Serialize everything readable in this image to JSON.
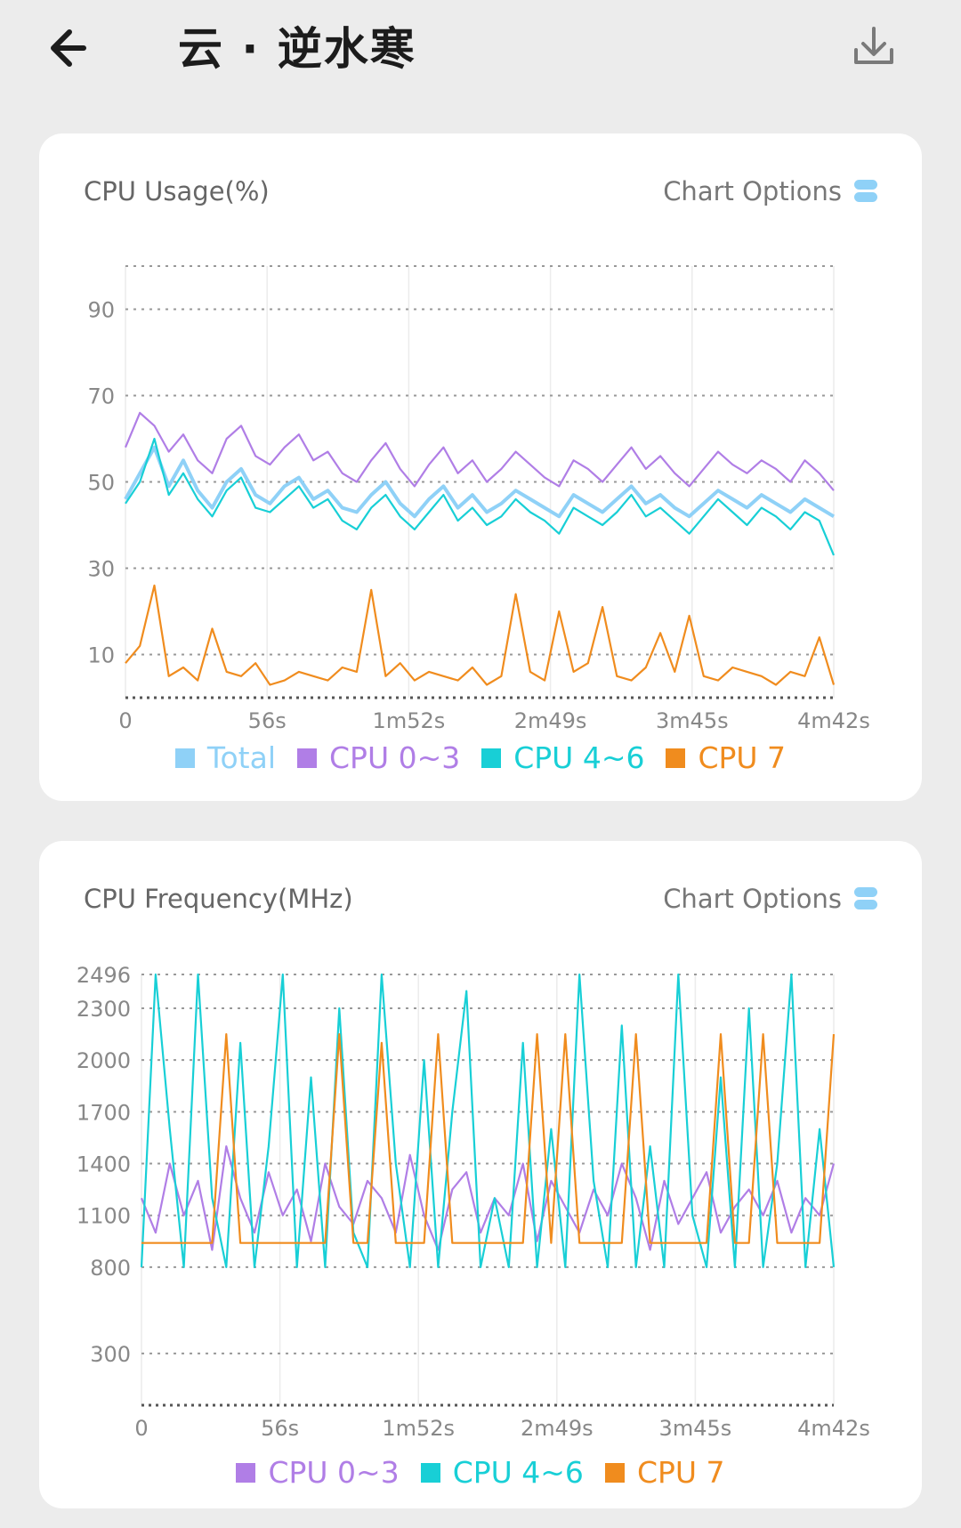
{
  "appbar": {
    "title": "云 · 逆水寒",
    "back_icon": "arrow-left-icon",
    "download_icon": "download-icon"
  },
  "usage_card": {
    "title": "CPU Usage(%)",
    "options_label": "Chart Options",
    "options_icon": "stacked-toggle-icon"
  },
  "frequency_card": {
    "title": "CPU Frequency(MHz)",
    "options_label": "Chart Options",
    "options_icon": "stacked-toggle-icon"
  },
  "colors": {
    "total": "#8fd1f7",
    "cpu03": "#b07ee6",
    "cpu46": "#18cfd6",
    "cpu7": "#f08c1e",
    "accent": "#8fd1f7"
  },
  "chart_data": [
    {
      "type": "line",
      "title": "CPU Usage(%)",
      "ylim": [
        0,
        100
      ],
      "yticks": [
        10,
        30,
        50,
        70,
        90
      ],
      "ytick_labels": [
        "10",
        "30",
        "50",
        "70",
        "90"
      ],
      "x_range_seconds": [
        0,
        282
      ],
      "xtick_labels": [
        "0",
        "56s",
        "1m52s",
        "2m49s",
        "3m45s",
        "4m42s"
      ],
      "legend_position": "bottom",
      "grid": true,
      "series": [
        {
          "name": "Total",
          "color": "#8fd1f7",
          "values": [
            46,
            52,
            58,
            49,
            55,
            48,
            44,
            50,
            53,
            47,
            45,
            49,
            51,
            46,
            48,
            44,
            43,
            47,
            50,
            45,
            42,
            46,
            49,
            44,
            47,
            43,
            45,
            48,
            46,
            44,
            42,
            47,
            45,
            43,
            46,
            49,
            45,
            47,
            44,
            42,
            45,
            48,
            46,
            44,
            47,
            45,
            43,
            46,
            44,
            42
          ]
        },
        {
          "name": "CPU 0~3",
          "color": "#b07ee6",
          "values": [
            58,
            66,
            63,
            57,
            61,
            55,
            52,
            60,
            63,
            56,
            54,
            58,
            61,
            55,
            57,
            52,
            50,
            55,
            59,
            53,
            49,
            54,
            58,
            52,
            55,
            50,
            53,
            57,
            54,
            51,
            49,
            55,
            53,
            50,
            54,
            58,
            53,
            56,
            52,
            49,
            53,
            57,
            54,
            52,
            55,
            53,
            50,
            55,
            52,
            48
          ]
        },
        {
          "name": "CPU 4~6",
          "color": "#18cfd6",
          "values": [
            45,
            50,
            60,
            47,
            52,
            46,
            42,
            48,
            51,
            44,
            43,
            46,
            49,
            44,
            46,
            41,
            39,
            44,
            47,
            42,
            39,
            43,
            47,
            41,
            44,
            40,
            42,
            46,
            43,
            41,
            38,
            44,
            42,
            40,
            43,
            47,
            42,
            44,
            41,
            38,
            42,
            46,
            43,
            40,
            44,
            42,
            39,
            43,
            41,
            33
          ]
        },
        {
          "name": "CPU 7",
          "color": "#f08c1e",
          "values": [
            8,
            12,
            26,
            5,
            7,
            4,
            16,
            6,
            5,
            8,
            3,
            4,
            6,
            5,
            4,
            7,
            6,
            25,
            5,
            8,
            4,
            6,
            5,
            4,
            7,
            3,
            5,
            24,
            6,
            4,
            20,
            6,
            8,
            21,
            5,
            4,
            7,
            15,
            6,
            19,
            5,
            4,
            7,
            6,
            5,
            3,
            6,
            5,
            14,
            3
          ]
        }
      ]
    },
    {
      "type": "line",
      "title": "CPU Frequency(MHz)",
      "ylim": [
        0,
        2496
      ],
      "yticks": [
        300,
        800,
        1100,
        1400,
        1700,
        2000,
        2300,
        2496
      ],
      "ytick_labels": [
        "300",
        "800",
        "1100",
        "1400",
        "1700",
        "2000",
        "2300",
        "2496"
      ],
      "x_range_seconds": [
        0,
        282
      ],
      "xtick_labels": [
        "0",
        "56s",
        "1m52s",
        "2m49s",
        "3m45s",
        "4m42s"
      ],
      "legend_position": "bottom",
      "grid": true,
      "series": [
        {
          "name": "CPU 0~3",
          "color": "#b07ee6",
          "values": [
            1200,
            1000,
            1400,
            1100,
            1300,
            900,
            1500,
            1200,
            1000,
            1350,
            1100,
            1250,
            950,
            1400,
            1150,
            1050,
            1300,
            1200,
            1000,
            1450,
            1100,
            900,
            1250,
            1350,
            1000,
            1200,
            1100,
            1400,
            950,
            1300,
            1150,
            1000,
            1250,
            1100,
            1400,
            1200,
            900,
            1300,
            1050,
            1200,
            1350,
            1000,
            1150,
            1250,
            1100,
            1300,
            1000,
            1200,
            1100,
            1400
          ]
        },
        {
          "name": "CPU 4~6",
          "color": "#18cfd6",
          "values": [
            800,
            2496,
            1600,
            800,
            2496,
            1200,
            800,
            2100,
            800,
            1500,
            2496,
            800,
            1900,
            800,
            2300,
            1000,
            800,
            2496,
            1400,
            800,
            2000,
            800,
            1700,
            2400,
            800,
            1200,
            800,
            2100,
            800,
            1600,
            800,
            2496,
            1300,
            800,
            2200,
            800,
            1500,
            800,
            2496,
            1100,
            800,
            1900,
            800,
            2300,
            800,
            1400,
            2496,
            800,
            1600,
            800
          ]
        },
        {
          "name": "CPU 7",
          "color": "#f08c1e",
          "values": [
            940,
            940,
            940,
            940,
            940,
            940,
            2150,
            940,
            940,
            940,
            940,
            940,
            940,
            940,
            2150,
            940,
            940,
            2100,
            940,
            940,
            940,
            2150,
            940,
            940,
            940,
            940,
            940,
            940,
            2150,
            940,
            2150,
            940,
            940,
            940,
            940,
            2150,
            940,
            940,
            940,
            940,
            940,
            2150,
            940,
            940,
            2150,
            940,
            940,
            940,
            940,
            2150
          ]
        }
      ]
    }
  ]
}
